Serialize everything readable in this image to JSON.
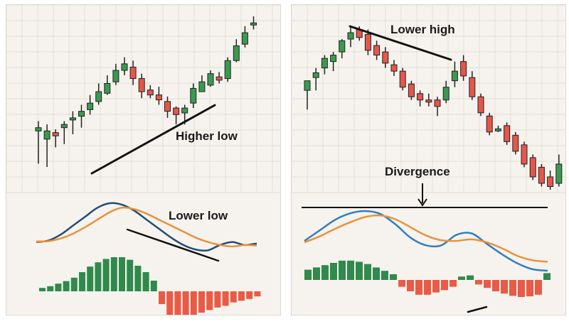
{
  "colors": {
    "bull": "#3a9a4f",
    "bear": "#e4574a",
    "hist_pos": "#2f8a4b",
    "hist_neg": "#ea5a45",
    "macd_line": "#1f4e79",
    "signal_line": "#e8923a",
    "macd_line_right": "#2f7fc0",
    "annotation": "#111111",
    "grid": "#e4dfd7",
    "background": "#f6f3ee"
  },
  "annotations": {
    "higher_low": "Higher low",
    "lower_low": "Lower low",
    "lower_high": "Lower high",
    "divergence": "Divergence"
  },
  "chart_data": [
    {
      "type": "candlestick",
      "panel": "left-price",
      "grid": true,
      "candles": [
        {
          "o": 36,
          "h": 40,
          "l": 14,
          "c": 34,
          "dir": "up"
        },
        {
          "o": 34,
          "h": 38,
          "l": 12,
          "c": 29,
          "dir": "up"
        },
        {
          "o": 33,
          "h": 35,
          "l": 24,
          "c": 31,
          "dir": "down"
        },
        {
          "o": 36,
          "h": 40,
          "l": 26,
          "c": 38,
          "dir": "up"
        },
        {
          "o": 42,
          "h": 46,
          "l": 32,
          "c": 41,
          "dir": "up"
        },
        {
          "o": 46,
          "h": 50,
          "l": 36,
          "c": 43,
          "dir": "up"
        },
        {
          "o": 51,
          "h": 56,
          "l": 44,
          "c": 47,
          "dir": "up"
        },
        {
          "o": 58,
          "h": 63,
          "l": 50,
          "c": 52,
          "dir": "up"
        },
        {
          "o": 63,
          "h": 68,
          "l": 56,
          "c": 57,
          "dir": "up"
        },
        {
          "o": 71,
          "h": 75,
          "l": 62,
          "c": 64,
          "dir": "up"
        },
        {
          "o": 75,
          "h": 79,
          "l": 68,
          "c": 71,
          "dir": "up"
        },
        {
          "o": 73,
          "h": 77,
          "l": 62,
          "c": 66,
          "dir": "down"
        },
        {
          "o": 66,
          "h": 69,
          "l": 54,
          "c": 58,
          "dir": "down"
        },
        {
          "o": 59,
          "h": 62,
          "l": 54,
          "c": 56,
          "dir": "down"
        },
        {
          "o": 56,
          "h": 61,
          "l": 50,
          "c": 53,
          "dir": "down"
        },
        {
          "o": 52,
          "h": 55,
          "l": 42,
          "c": 46,
          "dir": "down"
        },
        {
          "o": 48,
          "h": 49,
          "l": 38,
          "c": 44,
          "dir": "down"
        },
        {
          "o": 45,
          "h": 50,
          "l": 38,
          "c": 48,
          "dir": "up"
        },
        {
          "o": 60,
          "h": 63,
          "l": 48,
          "c": 51,
          "dir": "up"
        },
        {
          "o": 64,
          "h": 68,
          "l": 58,
          "c": 58,
          "dir": "up"
        },
        {
          "o": 69,
          "h": 71,
          "l": 61,
          "c": 62,
          "dir": "up"
        },
        {
          "o": 67,
          "h": 70,
          "l": 63,
          "c": 65,
          "dir": "down"
        },
        {
          "o": 77,
          "h": 79,
          "l": 64,
          "c": 66,
          "dir": "up"
        },
        {
          "o": 86,
          "h": 90,
          "l": 76,
          "c": 77,
          "dir": "up"
        },
        {
          "o": 94,
          "h": 98,
          "l": 85,
          "c": 87,
          "dir": "up"
        },
        {
          "o": 100,
          "h": 104,
          "l": 96,
          "c": 99,
          "dir": "up"
        }
      ]
    },
    {
      "type": "line",
      "panel": "left-macd",
      "series": [
        {
          "key": "macd",
          "values": [
            -0.3,
            -0.25,
            -0.05,
            0.25,
            0.55,
            0.85,
            1.0,
            0.95,
            0.75,
            0.45,
            0.15,
            -0.15,
            -0.4,
            -0.55,
            -0.58,
            -0.4,
            -0.3,
            -0.4,
            -0.35
          ]
        },
        {
          "key": "signal",
          "values": [
            -0.28,
            -0.27,
            -0.18,
            -0.02,
            0.2,
            0.45,
            0.7,
            0.85,
            0.8,
            0.65,
            0.45,
            0.25,
            0.05,
            -0.15,
            -0.3,
            -0.4,
            -0.45,
            -0.4,
            -0.42
          ]
        }
      ]
    },
    {
      "type": "bar",
      "panel": "left-histogram",
      "values": [
        0.08,
        0.12,
        0.18,
        0.24,
        0.32,
        0.45,
        0.58,
        0.68,
        0.76,
        0.8,
        0.8,
        0.74,
        0.6,
        0.45,
        0.25,
        -0.3,
        -0.55,
        -0.6,
        -0.6,
        -0.56,
        -0.5,
        -0.44,
        -0.38,
        -0.34,
        -0.26,
        -0.22,
        -0.18,
        -0.12
      ]
    },
    {
      "type": "candlestick",
      "panel": "right-price",
      "grid": true,
      "candles": [
        {
          "o": 62,
          "h": 68,
          "l": 50,
          "c": 68,
          "dir": "up"
        },
        {
          "o": 70,
          "h": 76,
          "l": 62,
          "c": 73,
          "dir": "up"
        },
        {
          "o": 76,
          "h": 84,
          "l": 72,
          "c": 82,
          "dir": "up"
        },
        {
          "o": 80,
          "h": 86,
          "l": 74,
          "c": 84,
          "dir": "up"
        },
        {
          "o": 86,
          "h": 94,
          "l": 82,
          "c": 93,
          "dir": "up"
        },
        {
          "o": 94,
          "h": 102,
          "l": 89,
          "c": 98,
          "dir": "up"
        },
        {
          "o": 100,
          "h": 102,
          "l": 93,
          "c": 95,
          "dir": "down"
        },
        {
          "o": 97,
          "h": 100,
          "l": 84,
          "c": 87,
          "dir": "down"
        },
        {
          "o": 90,
          "h": 93,
          "l": 81,
          "c": 84,
          "dir": "down"
        },
        {
          "o": 86,
          "h": 89,
          "l": 76,
          "c": 79,
          "dir": "down"
        },
        {
          "o": 78,
          "h": 81,
          "l": 71,
          "c": 74,
          "dir": "down"
        },
        {
          "o": 74,
          "h": 76,
          "l": 62,
          "c": 64,
          "dir": "down"
        },
        {
          "o": 66,
          "h": 68,
          "l": 56,
          "c": 58,
          "dir": "down"
        },
        {
          "o": 60,
          "h": 62,
          "l": 52,
          "c": 56,
          "dir": "down"
        },
        {
          "o": 56,
          "h": 60,
          "l": 52,
          "c": 55,
          "dir": "down"
        },
        {
          "o": 56,
          "h": 58,
          "l": 46,
          "c": 52,
          "dir": "down"
        },
        {
          "o": 56,
          "h": 68,
          "l": 54,
          "c": 64,
          "dir": "up"
        },
        {
          "o": 68,
          "h": 80,
          "l": 64,
          "c": 74,
          "dir": "up"
        },
        {
          "o": 80,
          "h": 84,
          "l": 68,
          "c": 71,
          "dir": "down"
        },
        {
          "o": 70,
          "h": 74,
          "l": 56,
          "c": 58,
          "dir": "down"
        },
        {
          "o": 58,
          "h": 60,
          "l": 46,
          "c": 48,
          "dir": "down"
        },
        {
          "o": 46,
          "h": 48,
          "l": 34,
          "c": 36,
          "dir": "down"
        },
        {
          "o": 38,
          "h": 40,
          "l": 36,
          "c": 38,
          "dir": "up"
        },
        {
          "o": 40,
          "h": 42,
          "l": 28,
          "c": 30,
          "dir": "down"
        },
        {
          "o": 34,
          "h": 36,
          "l": 22,
          "c": 24,
          "dir": "down"
        },
        {
          "o": 28,
          "h": 30,
          "l": 14,
          "c": 16,
          "dir": "down"
        },
        {
          "o": 20,
          "h": 22,
          "l": 6,
          "c": 8,
          "dir": "down"
        },
        {
          "o": 14,
          "h": 16,
          "l": 2,
          "c": 4,
          "dir": "down"
        },
        {
          "o": 8,
          "h": 12,
          "l": 0,
          "c": 2,
          "dir": "down"
        },
        {
          "o": 4,
          "h": 22,
          "l": 2,
          "c": 16,
          "dir": "up"
        }
      ]
    },
    {
      "type": "line",
      "panel": "right-macd",
      "series": [
        {
          "key": "macd",
          "values": [
            0.0,
            0.35,
            0.7,
            0.92,
            1.0,
            0.9,
            0.55,
            0.1,
            -0.15,
            -0.15,
            0.2,
            0.25,
            -0.1,
            -0.45,
            -0.75,
            -0.95,
            -1.0
          ]
        },
        {
          "key": "signal",
          "values": [
            -0.05,
            0.15,
            0.4,
            0.62,
            0.8,
            0.85,
            0.72,
            0.45,
            0.18,
            0.02,
            0.0,
            0.05,
            -0.05,
            -0.25,
            -0.5,
            -0.65,
            -0.7
          ]
        }
      ]
    },
    {
      "type": "bar",
      "panel": "right-histogram",
      "values": [
        0.45,
        0.55,
        0.65,
        0.75,
        0.85,
        0.85,
        0.8,
        0.7,
        0.55,
        0.4,
        0.25,
        -0.3,
        -0.5,
        -0.65,
        -0.65,
        -0.55,
        -0.45,
        -0.3,
        0.15,
        0.2,
        -0.2,
        -0.35,
        -0.5,
        -0.6,
        -0.7,
        -0.75,
        -0.72,
        -0.65,
        0.3
      ]
    }
  ]
}
